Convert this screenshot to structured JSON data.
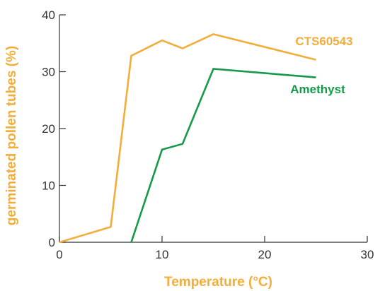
{
  "chart_data": {
    "type": "line",
    "xlabel": "Temperature (°C)",
    "ylabel": "germinated pollen tubes (%)",
    "xlim": [
      0,
      30
    ],
    "ylim": [
      0,
      40
    ],
    "xticks": [
      0,
      10,
      20,
      30
    ],
    "yticks": [
      0,
      10,
      20,
      30,
      40
    ],
    "grid": false,
    "legend": "inline labels at right end of each series",
    "series": [
      {
        "name": "CTS60543",
        "color": "#f2ad3a",
        "points": [
          [
            0,
            0
          ],
          [
            5,
            2.7
          ],
          [
            7,
            32.8
          ],
          [
            10,
            35.5
          ],
          [
            12,
            34.1
          ],
          [
            15,
            36.6
          ],
          [
            25,
            32.1
          ]
        ]
      },
      {
        "name": "Amethyst",
        "color": "#169a49",
        "points": [
          [
            7,
            0
          ],
          [
            10,
            16.3
          ],
          [
            12,
            17.3
          ],
          [
            15,
            30.5
          ],
          [
            25,
            29.0
          ]
        ]
      }
    ]
  }
}
